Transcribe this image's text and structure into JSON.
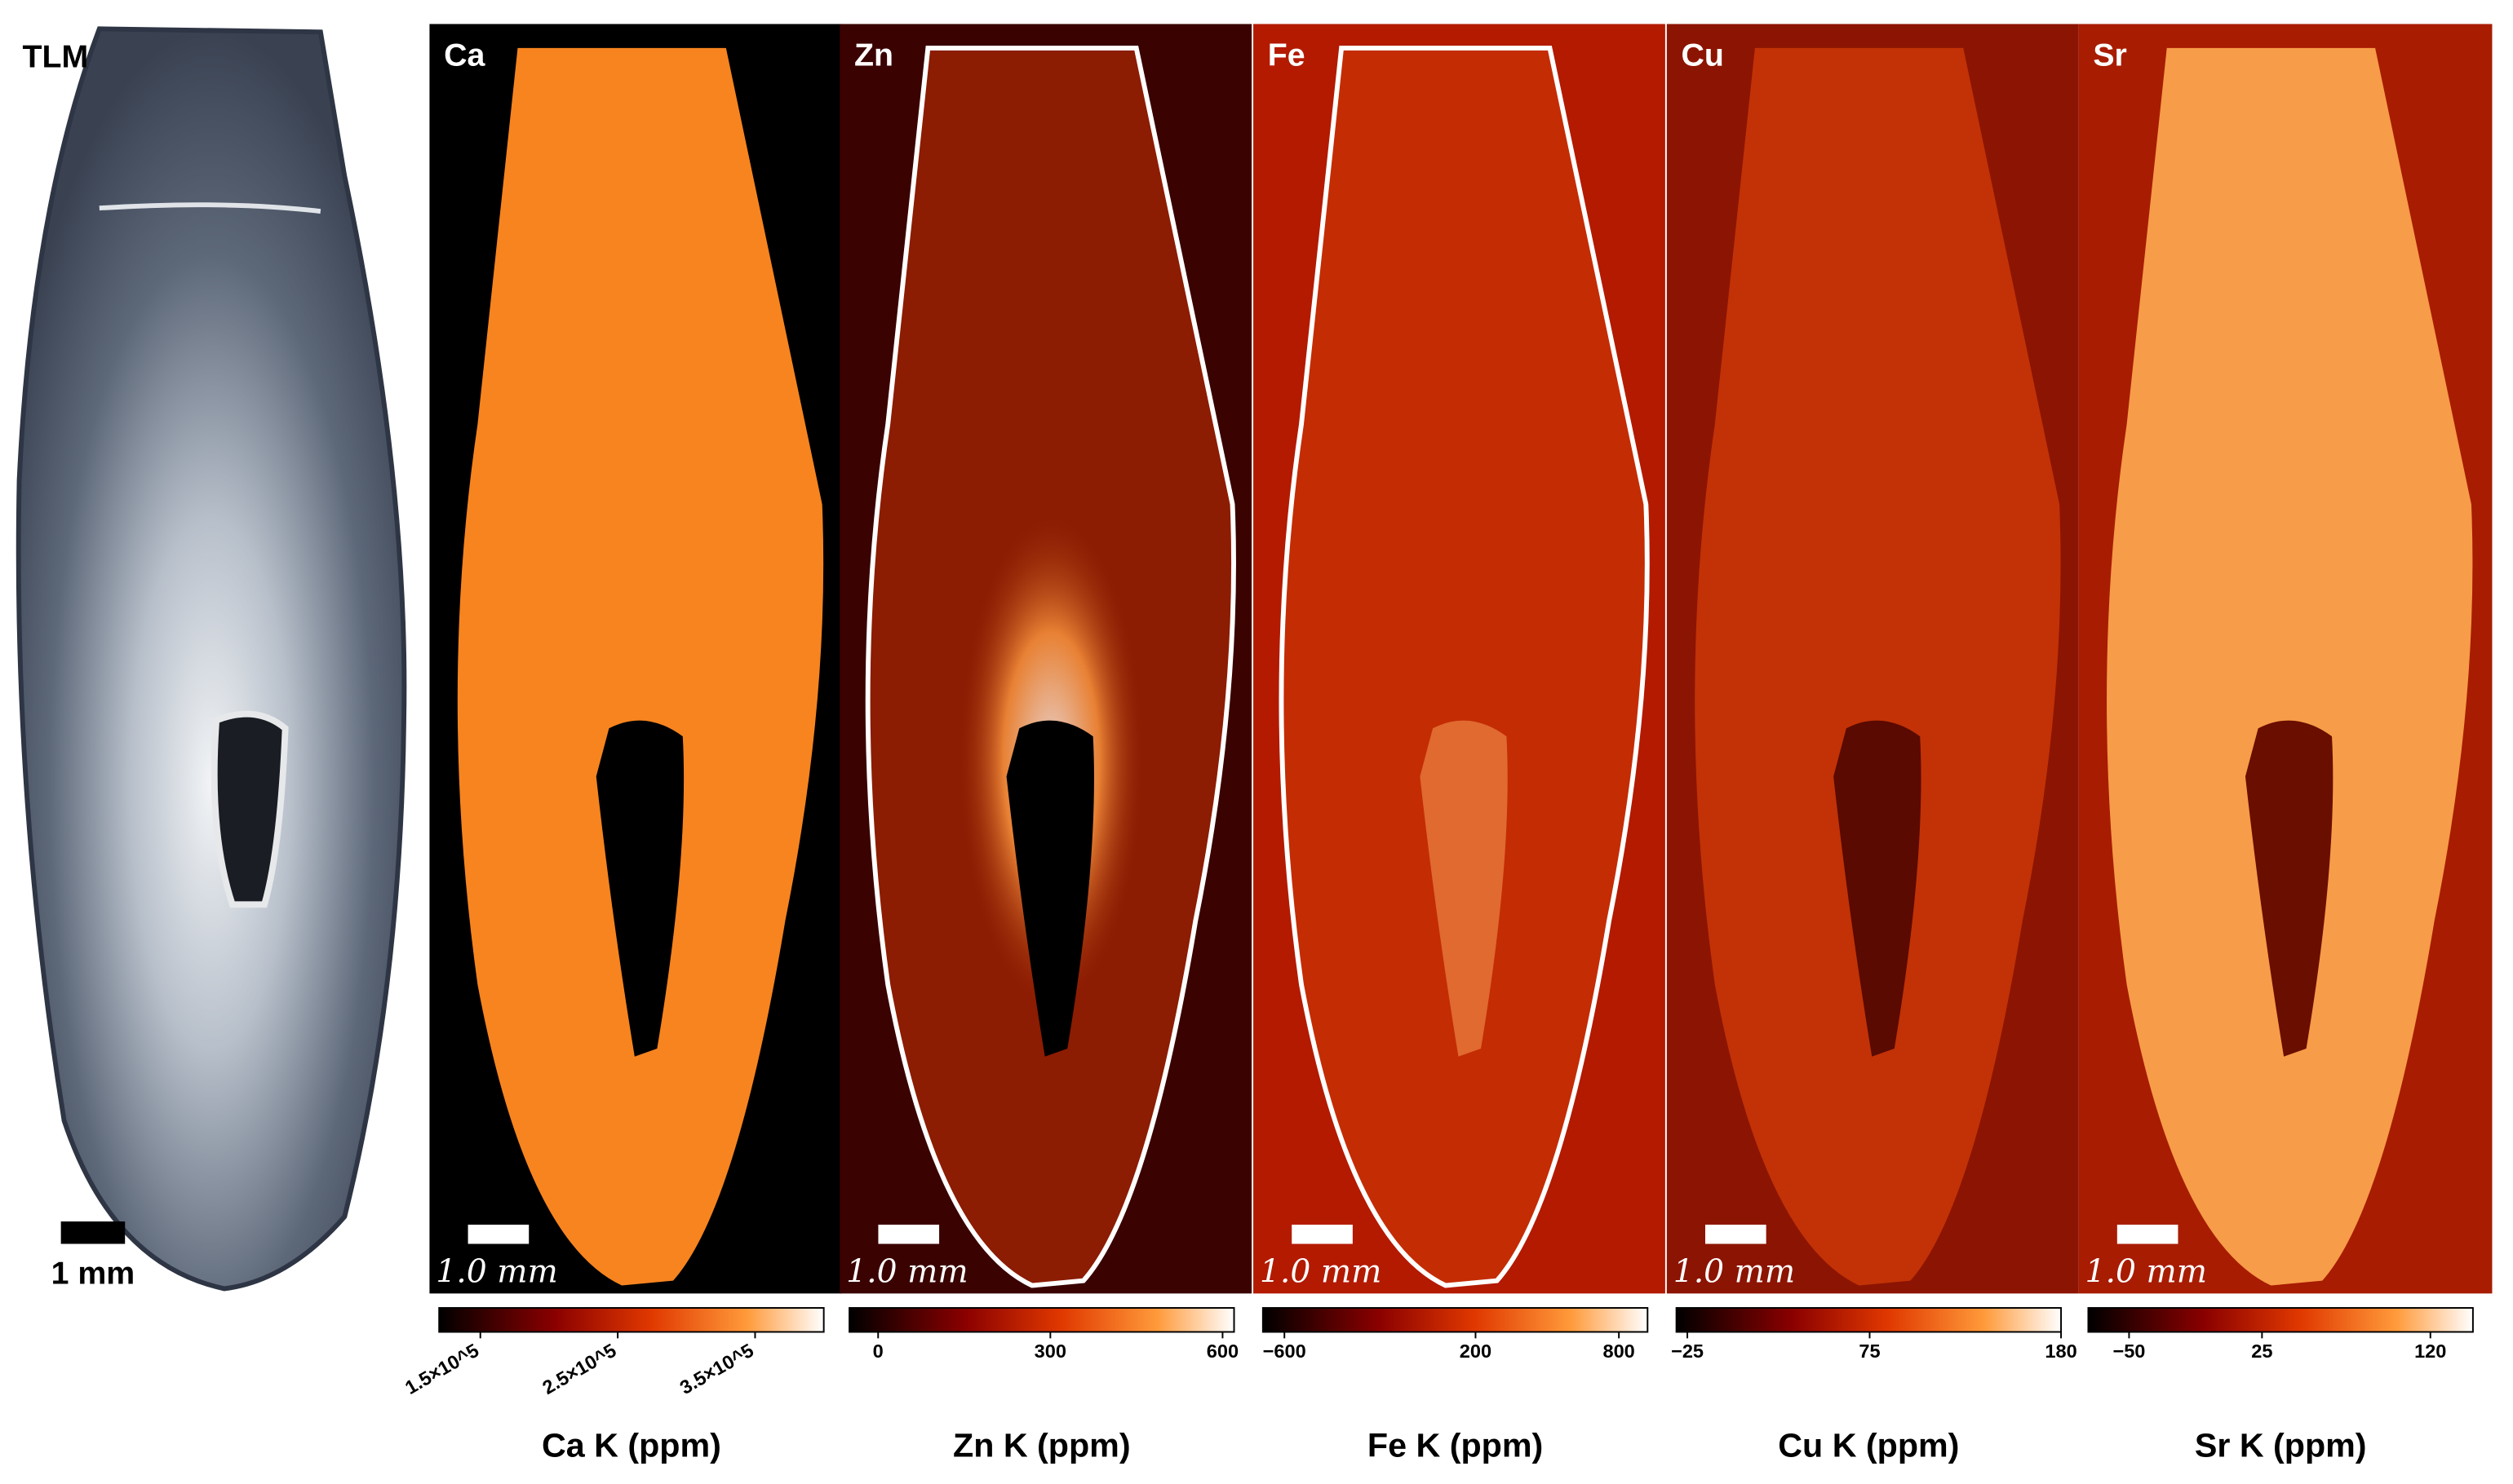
{
  "tlm": {
    "label": "TLM",
    "scale_bar": "1 mm"
  },
  "maps": [
    {
      "label": "Ca",
      "scale_bar": "1.0 mm",
      "colorbar": {
        "title": "Ca K (ppm)",
        "lim": [
          120000,
          400000
        ],
        "ticks": [
          {
            "value": 150000,
            "label": "1.5×10^5"
          },
          {
            "value": 250000,
            "label": "2.5×10^5"
          },
          {
            "value": 350000,
            "label": "3.5×10^5"
          }
        ]
      }
    },
    {
      "label": "Zn",
      "scale_bar": "1.0 mm",
      "colorbar": {
        "title": "Zn K (ppm)",
        "lim": [
          -50,
          620
        ],
        "ticks": [
          0,
          300,
          600
        ]
      }
    },
    {
      "label": "Fe",
      "scale_bar": "1.0 mm",
      "colorbar": {
        "title": "Fe K (ppm)",
        "lim": [
          -690,
          920
        ],
        "ticks": [
          {
            "value": -600,
            "label": "−600"
          },
          200,
          800
        ]
      }
    },
    {
      "label": "Cu",
      "scale_bar": "1.0 mm",
      "colorbar": {
        "title": "Cu K (ppm)",
        "lim": [
          -31,
          180
        ],
        "ticks": [
          {
            "value": -25,
            "label": "−25"
          },
          75,
          180
        ]
      }
    },
    {
      "label": "Sr",
      "scale_bar": "1.0 mm",
      "colorbar": {
        "title": "Sr K (ppm)",
        "lim": [
          -73,
          144
        ],
        "ticks": [
          {
            "value": -50,
            "label": "−50"
          },
          25,
          120
        ]
      }
    }
  ]
}
